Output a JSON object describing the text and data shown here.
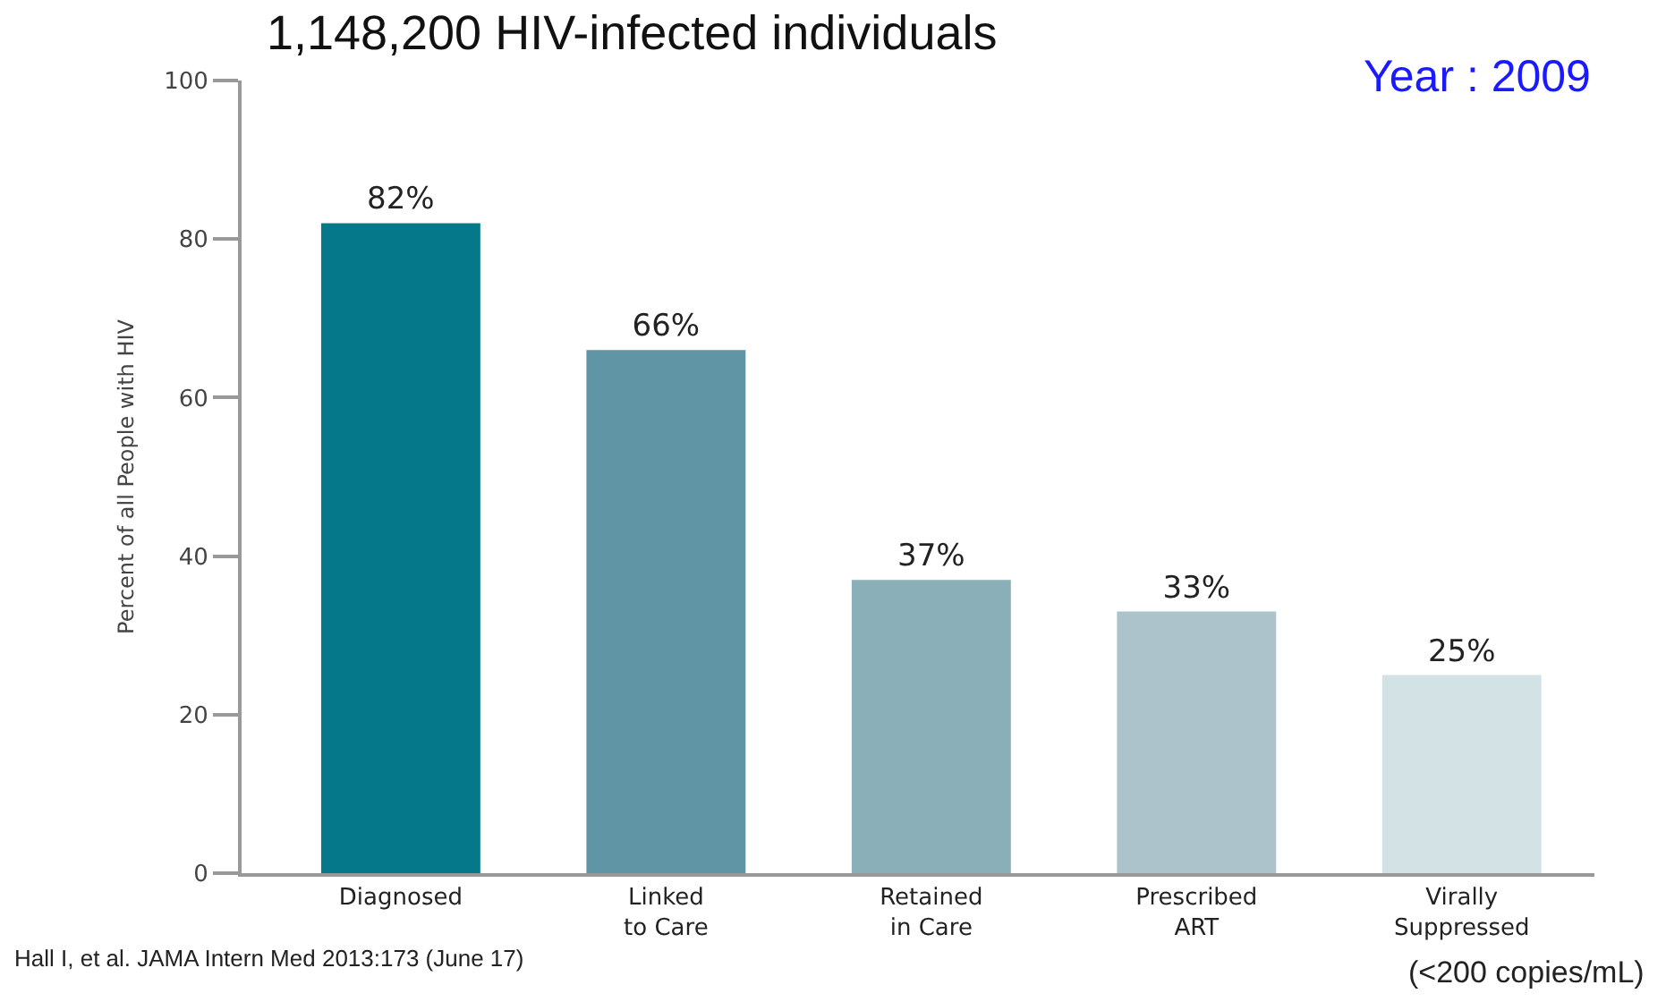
{
  "chart_data": {
    "type": "bar",
    "title": "1,148,200 HIV-infected individuals",
    "ylabel": "Percent of all People with HIV",
    "categories": [
      "Diagnosed",
      "Linked to Care",
      "Retained in Care",
      "Prescribed ART",
      "Virally Suppressed"
    ],
    "values": [
      82,
      66,
      37,
      33,
      25
    ],
    "colors": [
      "#05788a",
      "#5f95a5",
      "#8aafb8",
      "#adc3cb",
      "#d3e2e4"
    ],
    "value_labels": [
      "82%",
      "66%",
      "37%",
      "33%",
      "25%"
    ],
    "ylim": [
      0,
      100
    ],
    "yticks": [
      0,
      20,
      40,
      60,
      80,
      100
    ],
    "grid": false,
    "annotations": [
      "Year : 2009",
      "Hall I, et al. JAMA Intern Med 2013:173 (June 17)",
      "(<200 copies/mL)"
    ]
  }
}
